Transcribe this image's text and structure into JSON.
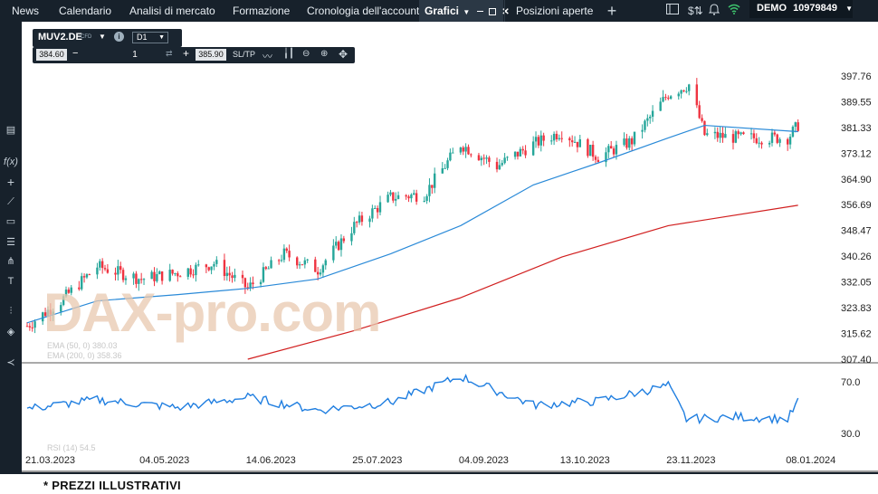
{
  "nav": {
    "tabs": [
      "News",
      "Calendario",
      "Analisi di mercato",
      "Formazione",
      "Cronologia dell'account",
      "Grafici",
      "Posizioni aperte"
    ],
    "account_mode": "DEMO",
    "account_number": "10979849"
  },
  "instrument": {
    "symbol": "MUV2.DE",
    "type_badge": "CFD",
    "timeframe": "D1",
    "bid": "384.60",
    "ask": "385.90",
    "quantity": "1",
    "sltp_label": "SL/TP"
  },
  "indicators": {
    "ema50_label": "EMA (50, 0) 380.03",
    "ema200_label": "EMA (200, 0) 358.36",
    "rsi_label": "RSI (14) 54.5"
  },
  "watermark": "DAX-pro.com",
  "footnote": "* PREZZI ILLUSTRATIVI",
  "colors": {
    "up": "#26a69a",
    "down": "#ef3340",
    "ema50": "#2a8ad8",
    "ema200": "#d11f1f",
    "rsi": "#1f7ee0"
  },
  "chart_data": [
    {
      "type": "line",
      "title": "MUV2.DE D1",
      "y_ticks": [
        397.76,
        389.55,
        381.33,
        373.12,
        364.9,
        356.69,
        348.47,
        340.26,
        332.05,
        323.83,
        315.62,
        307.4
      ],
      "ylim": [
        307.4,
        401.5
      ],
      "x_tick_labels": [
        "21.03.2023",
        "04.05.2023",
        "14.06.2023",
        "25.07.2023",
        "04.09.2023",
        "13.10.2023",
        "23.11.2023",
        "08.01.2024"
      ],
      "series": [
        {
          "name": "Price (close)",
          "x": [
            "2023-03-21",
            "2023-04-03",
            "2023-04-17",
            "2023-05-04",
            "2023-05-18",
            "2023-06-01",
            "2023-06-14",
            "2023-06-28",
            "2023-07-11",
            "2023-07-25",
            "2023-08-08",
            "2023-08-21",
            "2023-09-04",
            "2023-09-18",
            "2023-10-02",
            "2023-10-13",
            "2023-10-27",
            "2023-11-09",
            "2023-11-23",
            "2023-12-01",
            "2023-12-07",
            "2023-12-20",
            "2024-01-08",
            "2024-01-12"
          ],
          "values": [
            318,
            326,
            337,
            333,
            335,
            338,
            330,
            341,
            336,
            350,
            359,
            360,
            376,
            369,
            376,
            380,
            372,
            377,
            392,
            395,
            379,
            378,
            378,
            382
          ]
        },
        {
          "name": "EMA (50, 0)",
          "x": [
            "2023-03-21",
            "2023-04-17",
            "2023-05-18",
            "2023-06-14",
            "2023-07-11",
            "2023-08-08",
            "2023-09-04",
            "2023-10-02",
            "2023-10-27",
            "2023-11-23",
            "2023-12-07",
            "2024-01-12"
          ],
          "values": [
            319,
            326,
            328,
            330,
            333,
            341,
            350,
            363,
            370,
            378,
            382,
            380
          ]
        },
        {
          "name": "EMA (200, 0)",
          "x": [
            "2023-06-14",
            "2023-07-25",
            "2023-09-04",
            "2023-10-13",
            "2023-11-23",
            "2024-01-12"
          ],
          "values": [
            307.4,
            316.5,
            327,
            340,
            350,
            356.5
          ]
        }
      ]
    },
    {
      "type": "line",
      "title": "RSI (14)",
      "y_ticks": [
        70.0,
        30.0
      ],
      "x_tick_labels": [
        "21.03.2023",
        "04.05.2023",
        "14.06.2023",
        "25.07.2023",
        "04.09.2023",
        "13.10.2023",
        "23.11.2023",
        "08.01.2024"
      ],
      "series": [
        {
          "name": "RSI (14)",
          "x": [
            "2023-03-21",
            "2023-04-17",
            "2023-05-18",
            "2023-06-14",
            "2023-07-11",
            "2023-08-08",
            "2023-09-04",
            "2023-10-02",
            "2023-10-27",
            "2023-11-23",
            "2023-11-30",
            "2023-12-20",
            "2024-01-08",
            "2024-01-12"
          ],
          "values": [
            49,
            56,
            50,
            58,
            48,
            54,
            74,
            52,
            55,
            67,
            41,
            43,
            41,
            54.5
          ]
        }
      ]
    }
  ]
}
